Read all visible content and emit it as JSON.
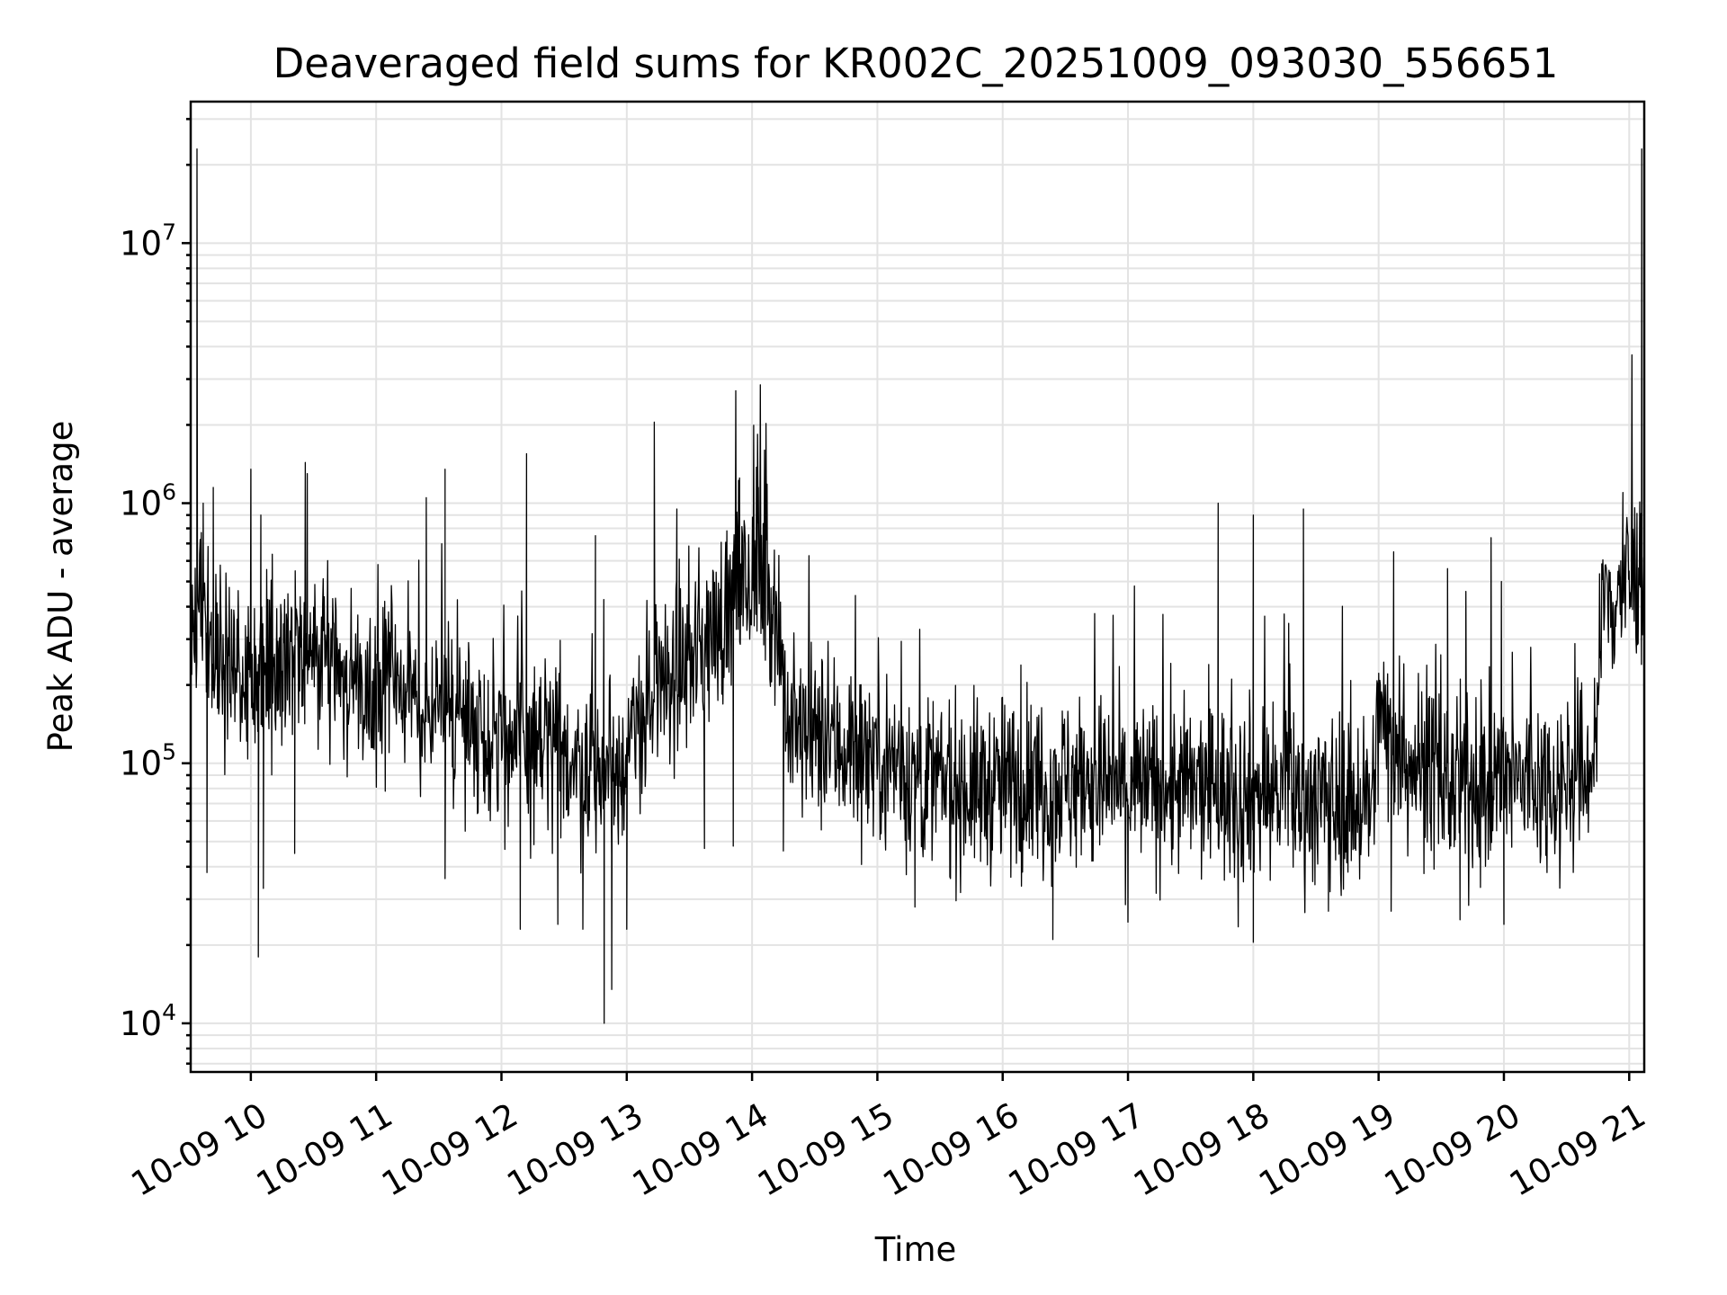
{
  "chart_data": {
    "type": "line",
    "title": "Deaveraged field sums for KR002C_20251009_093030_556651",
    "xlabel": "Time",
    "ylabel": "Peak ADU - average",
    "yscale": "log",
    "ylim": [
      6500,
      35000000
    ],
    "xlim": [
      9.52,
      21.12
    ],
    "x_unit": "hour of 2025-10-09",
    "x_ticks": [
      {
        "value": 10,
        "label": "10-09 10"
      },
      {
        "value": 11,
        "label": "10-09 11"
      },
      {
        "value": 12,
        "label": "10-09 12"
      },
      {
        "value": 13,
        "label": "10-09 13"
      },
      {
        "value": 14,
        "label": "10-09 14"
      },
      {
        "value": 15,
        "label": "10-09 15"
      },
      {
        "value": 16,
        "label": "10-09 16"
      },
      {
        "value": 17,
        "label": "10-09 17"
      },
      {
        "value": 18,
        "label": "10-09 18"
      },
      {
        "value": 19,
        "label": "10-09 19"
      },
      {
        "value": 20,
        "label": "10-09 20"
      },
      {
        "value": 21,
        "label": "10-09 21"
      }
    ],
    "y_ticks": [
      {
        "value": 10000,
        "base": "10",
        "exp": "4"
      },
      {
        "value": 100000,
        "base": "10",
        "exp": "5"
      },
      {
        "value": 1000000,
        "base": "10",
        "exp": "6"
      },
      {
        "value": 10000000,
        "base": "10",
        "exp": "7"
      }
    ],
    "grid": true,
    "series": [
      {
        "name": "Peak ADU - average",
        "color": "#000000",
        "baseline_profile": [
          [
            9.52,
            300000
          ],
          [
            9.6,
            400000
          ],
          [
            9.8,
            250000
          ],
          [
            10.0,
            220000
          ],
          [
            10.3,
            250000
          ],
          [
            10.6,
            250000
          ],
          [
            10.9,
            200000
          ],
          [
            11.2,
            190000
          ],
          [
            11.5,
            160000
          ],
          [
            11.8,
            140000
          ],
          [
            12.1,
            120000
          ],
          [
            12.5,
            110000
          ],
          [
            12.8,
            90000
          ],
          [
            13.0,
            110000
          ],
          [
            13.2,
            170000
          ],
          [
            13.5,
            260000
          ],
          [
            13.7,
            320000
          ],
          [
            13.9,
            470000
          ],
          [
            14.1,
            500000
          ],
          [
            14.2,
            380000
          ],
          [
            14.3,
            130000
          ],
          [
            14.6,
            120000
          ],
          [
            15.0,
            110000
          ],
          [
            15.4,
            85000
          ],
          [
            15.8,
            80000
          ],
          [
            16.2,
            85000
          ],
          [
            16.6,
            85000
          ],
          [
            17.0,
            80000
          ],
          [
            17.4,
            80000
          ],
          [
            17.8,
            78000
          ],
          [
            18.2,
            78000
          ],
          [
            18.6,
            72000
          ],
          [
            18.95,
            70000
          ],
          [
            19.0,
            150000
          ],
          [
            19.2,
            110000
          ],
          [
            19.6,
            80000
          ],
          [
            20.0,
            85000
          ],
          [
            20.4,
            85000
          ],
          [
            20.65,
            90000
          ],
          [
            20.72,
            110000
          ],
          [
            20.8,
            400000
          ],
          [
            21.0,
            500000
          ],
          [
            21.12,
            550000
          ]
        ],
        "spikes": [
          [
            9.57,
            23000000
          ],
          [
            9.62,
            1000000
          ],
          [
            9.65,
            38000
          ],
          [
            9.7,
            1150000
          ],
          [
            10.0,
            1350000
          ],
          [
            10.06,
            18000
          ],
          [
            10.08,
            900000
          ],
          [
            10.1,
            33000
          ],
          [
            10.45,
            1300000
          ],
          [
            10.35,
            45000
          ],
          [
            11.4,
            1050000
          ],
          [
            11.55,
            1350000
          ],
          [
            11.55,
            36000
          ],
          [
            12.15,
            23000
          ],
          [
            12.2,
            1550000
          ],
          [
            12.45,
            24000
          ],
          [
            12.65,
            23000
          ],
          [
            12.75,
            750000
          ],
          [
            12.82,
            10000
          ],
          [
            12.88,
            13500
          ],
          [
            13.0,
            23000
          ],
          [
            13.22,
            2050000
          ],
          [
            13.4,
            950000
          ],
          [
            13.62,
            47000
          ],
          [
            13.85,
            48000
          ],
          [
            13.9,
            1250000
          ],
          [
            14.05,
            1150000
          ],
          [
            14.1,
            1600000
          ],
          [
            14.25,
            46000
          ],
          [
            15.3,
            28000
          ],
          [
            16.4,
            21000
          ],
          [
            17.0,
            24500
          ],
          [
            17.72,
            1000000
          ],
          [
            17.88,
            23500
          ],
          [
            18.0,
            900000
          ],
          [
            18.0,
            20500
          ],
          [
            18.4,
            950000
          ],
          [
            18.6,
            27000
          ],
          [
            19.12,
            650000
          ],
          [
            19.1,
            27000
          ],
          [
            19.55,
            560000
          ],
          [
            19.65,
            25000
          ],
          [
            19.98,
            500000
          ],
          [
            20.0,
            24000
          ],
          [
            20.95,
            1100000
          ],
          [
            21.1,
            23000000
          ]
        ]
      }
    ]
  }
}
